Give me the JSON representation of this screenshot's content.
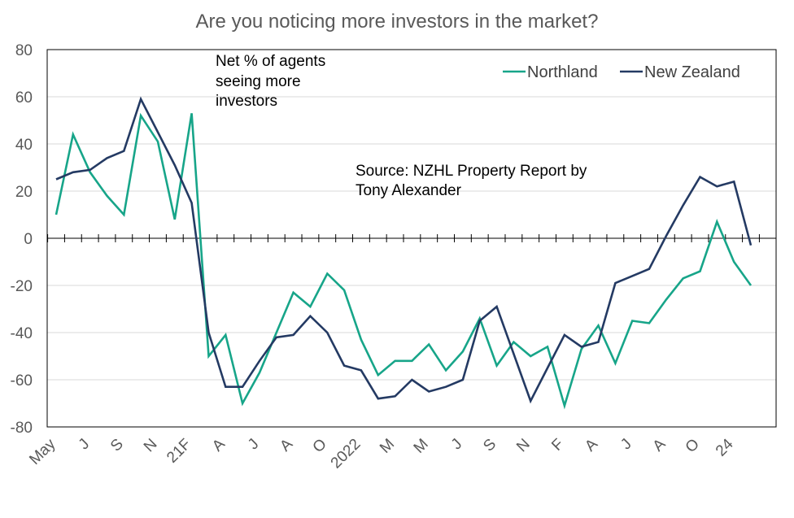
{
  "chart_data": {
    "type": "line",
    "title": "Are you noticing more investors in the market?",
    "xlabel": "",
    "ylabel": "",
    "ylim": [
      -80,
      80
    ],
    "y_ticks": [
      80,
      60,
      40,
      20,
      0,
      -20,
      -40,
      -60,
      -80
    ],
    "grid": "horizontal",
    "legend_position": "top-right",
    "x_tick_labels": [
      "May",
      "J",
      "S",
      "N",
      "21F",
      "A",
      "J",
      "A",
      "O",
      "2022",
      "M",
      "M",
      "J",
      "S",
      "N",
      "F",
      "A",
      "J",
      "A",
      "O",
      "24"
    ],
    "annotations": {
      "label_lines": [
        "Net % of agents",
        "seeing more",
        "investors"
      ],
      "source_lines": [
        "Source: NZHL Property Report by",
        "Tony Alexander"
      ]
    },
    "series": [
      {
        "name": "Northland",
        "color": "#17A589",
        "values": [
          10,
          44,
          28,
          18,
          10,
          52,
          41,
          8,
          53,
          -50,
          -41,
          -70,
          -57,
          -40,
          -23,
          -29,
          -15,
          -22,
          -43,
          -58,
          -52,
          -52,
          -45,
          -56,
          -48,
          -34,
          -54,
          -44,
          -50,
          -46,
          -71,
          -47,
          -37,
          -53,
          -35,
          -36,
          -26,
          -17,
          -14,
          7,
          -10,
          -20
        ]
      },
      {
        "name": "New Zealand",
        "color": "#243A63",
        "values": [
          25,
          28,
          29,
          34,
          37,
          59,
          45,
          31,
          15,
          -40,
          -63,
          -63,
          -52,
          -42,
          -41,
          -33,
          -40,
          -54,
          -56,
          -68,
          -67,
          -60,
          -65,
          -63,
          -60,
          -35,
          -29,
          -49,
          -69,
          -55,
          -41,
          -46,
          -44,
          -19,
          -16,
          -13,
          1,
          14,
          26,
          22,
          24,
          -3
        ]
      }
    ]
  }
}
